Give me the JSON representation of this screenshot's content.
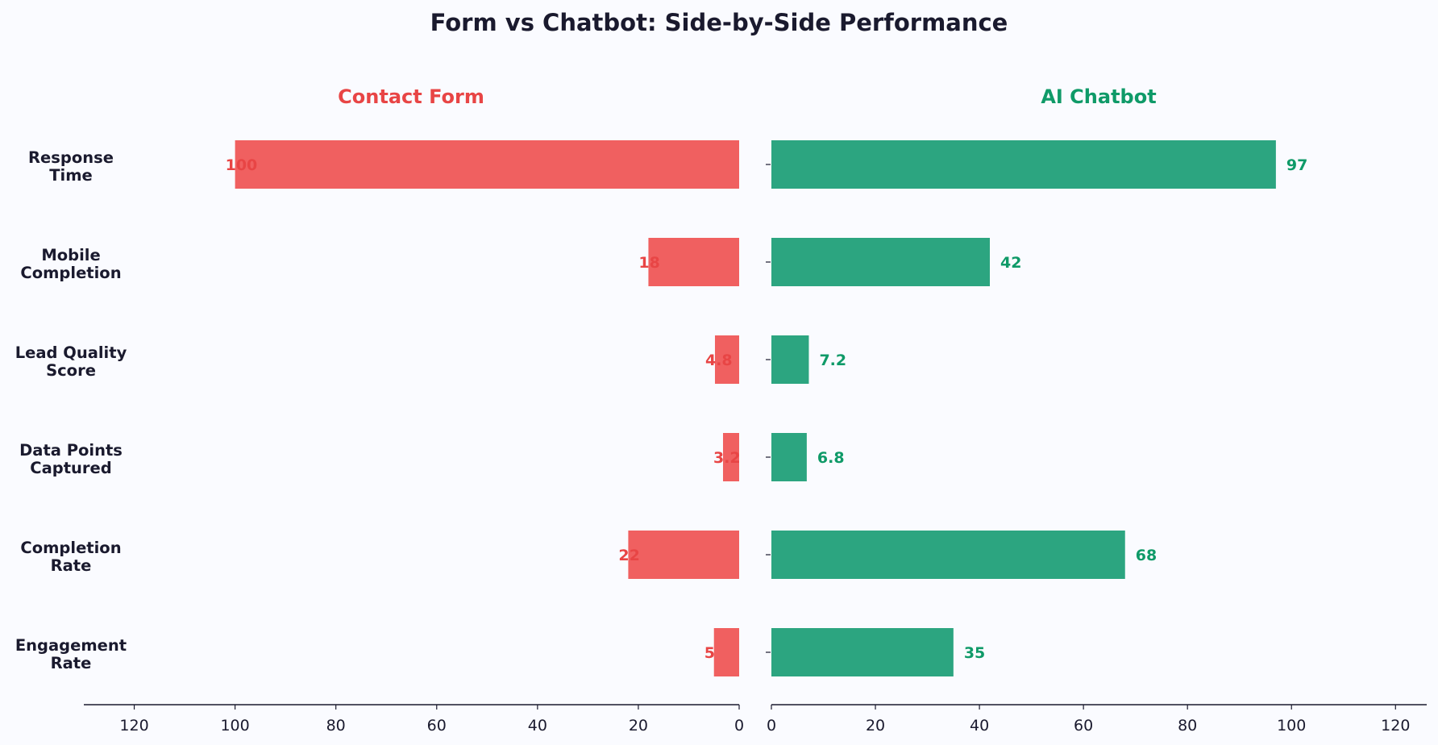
{
  "chart_data": {
    "type": "bar",
    "title": "Form vs Chatbot: Side-by-Side Performance",
    "categories": [
      "Response Time",
      "Mobile Completion",
      "Lead Quality Score",
      "Data Points Captured",
      "Completion Rate",
      "Engagement Rate"
    ],
    "category_lines": [
      [
        "Response",
        "Time"
      ],
      [
        "Mobile",
        "Completion"
      ],
      [
        "Lead Quality",
        "Score"
      ],
      [
        "Data Points",
        "Captured"
      ],
      [
        "Completion",
        "Rate"
      ],
      [
        "Engagement",
        "Rate"
      ]
    ],
    "series": [
      {
        "name": "Contact Form",
        "values": [
          100,
          18,
          4.8,
          3.2,
          22,
          5
        ],
        "labels": [
          "100",
          "18",
          "4.8",
          "3.2",
          "22",
          "5"
        ],
        "color": "#f06060",
        "label_color": "#e84545"
      },
      {
        "name": "AI Chatbot",
        "values": [
          97,
          42,
          7.2,
          6.8,
          68,
          35
        ],
        "labels": [
          "97",
          "42",
          "7.2",
          "6.8",
          "68",
          "35"
        ],
        "color": "#2ca580",
        "label_color": "#0f9a68"
      }
    ],
    "left_xlim": [
      130,
      0
    ],
    "right_xlim": [
      0,
      126
    ],
    "xticks": [
      0,
      20,
      40,
      60,
      80,
      100,
      120
    ],
    "xtick_labels": [
      "0",
      "20",
      "40",
      "60",
      "80",
      "100",
      "120"
    ],
    "xlabel": "",
    "ylabel": "",
    "grid": false,
    "legend": "none"
  }
}
